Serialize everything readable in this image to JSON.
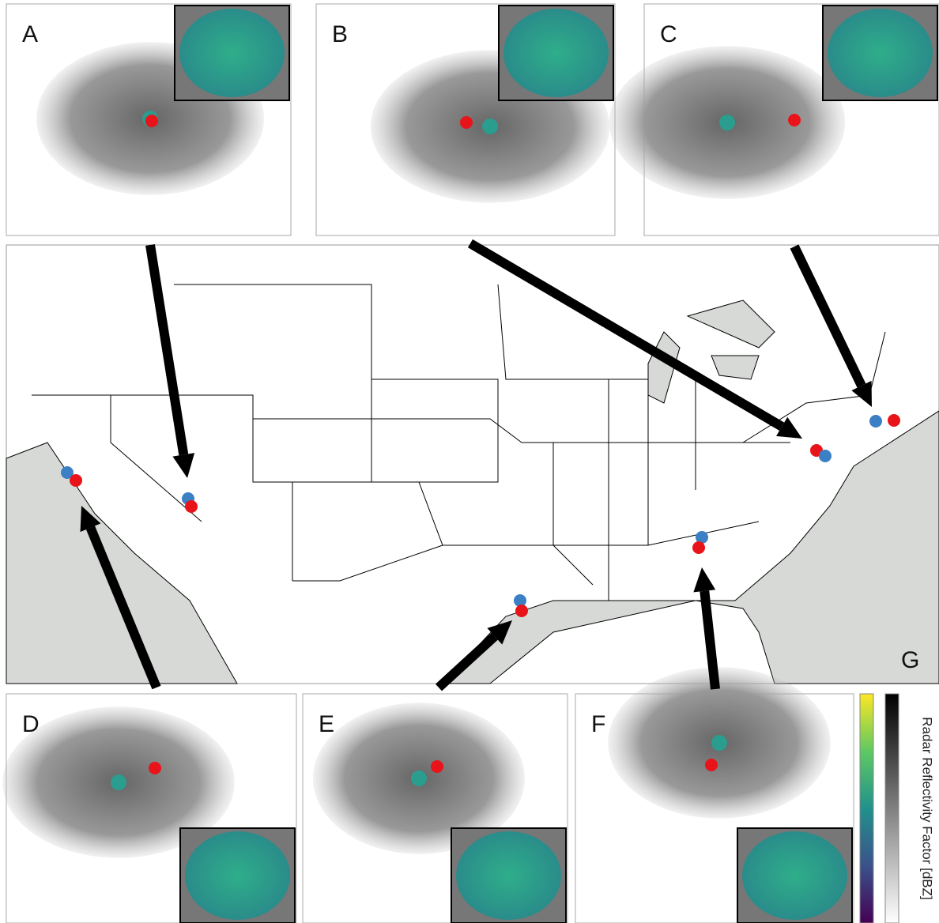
{
  "panels": [
    {
      "label": "A"
    },
    {
      "label": "B"
    },
    {
      "label": "C"
    },
    {
      "label": "D"
    },
    {
      "label": "E"
    },
    {
      "label": "F"
    }
  ],
  "main_map": {
    "label": "G"
  },
  "colorbar": {
    "label": "Radar Reflectivity Factor [dBZ]"
  }
}
